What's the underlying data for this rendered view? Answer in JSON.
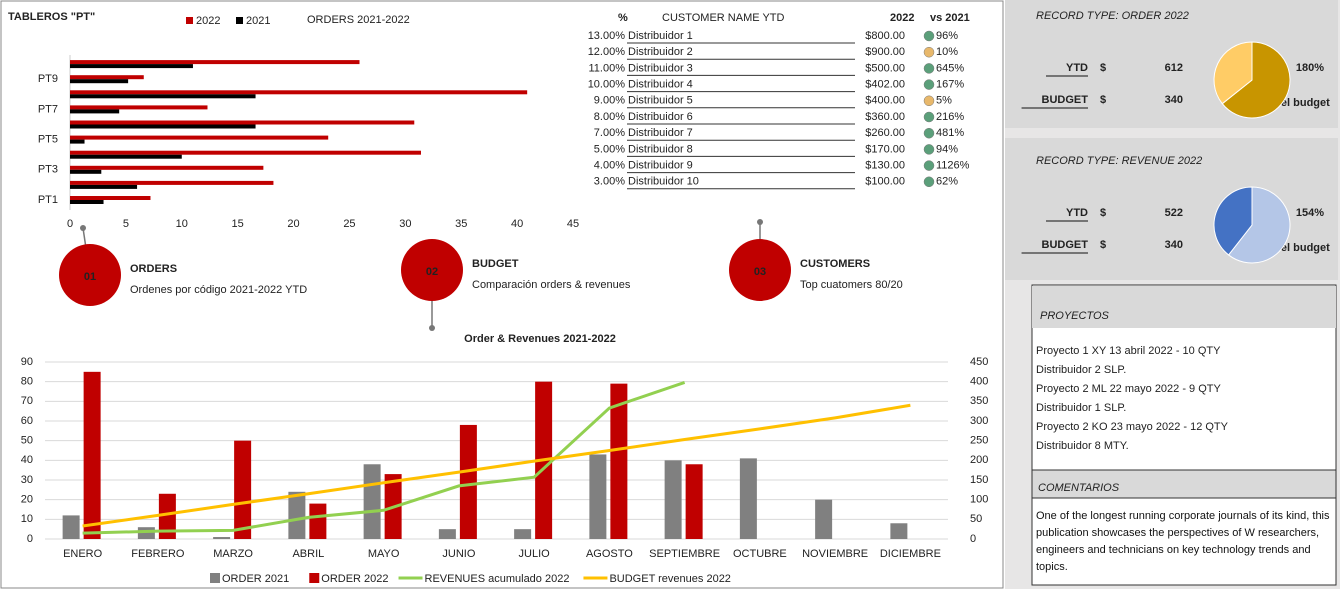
{
  "header": {
    "title": "TABLEROS \"PT\""
  },
  "chart_data": [
    {
      "type": "hbar",
      "title": "ORDERS 2021-2022",
      "categories": [
        "PT1",
        null,
        "PT3",
        null,
        "PT5",
        null,
        "PT7",
        null,
        "PT9",
        null
      ],
      "series": [
        {
          "name": "2022",
          "color": "#c00000",
          "values": [
            7.2,
            18.2,
            17.3,
            31.4,
            23.1,
            30.8,
            12.3,
            40.9,
            6.6,
            25.9
          ]
        },
        {
          "name": "2021",
          "color": "#000000",
          "values": [
            3,
            6,
            2.8,
            10,
            1.3,
            16.6,
            4.4,
            16.6,
            5.2,
            11
          ]
        }
      ],
      "xlim": [
        0,
        45
      ],
      "xticks": [
        0,
        5,
        10,
        15,
        20,
        25,
        30,
        35,
        40,
        45
      ]
    },
    {
      "type": "combo",
      "title": "Order & Revenues 2021-2022",
      "categories": [
        "ENERO",
        "FEBRERO",
        "MARZO",
        "ABRIL",
        "MAYO",
        "JUNIO",
        "JULIO",
        "AGOSTO",
        "SEPTIEMBRE",
        "OCTUBRE",
        "NOVIEMBRE",
        "DICIEMBRE"
      ],
      "series": [
        {
          "name": "ORDER 2021",
          "type": "bar",
          "color": "#808080",
          "values": [
            12,
            6,
            1,
            24,
            38,
            5,
            5,
            43,
            40,
            41,
            20,
            8
          ]
        },
        {
          "name": "ORDER 2022",
          "type": "bar",
          "color": "#c00000",
          "values": [
            85,
            23,
            50,
            18,
            33,
            58,
            80,
            79,
            38,
            null,
            null,
            null
          ]
        },
        {
          "name": "REVENUES acumulado 2022",
          "type": "line",
          "axis": "y2",
          "color": "#92d050",
          "values": [
            15,
            20,
            22,
            55,
            73,
            135,
            157,
            333,
            398,
            null,
            null,
            null
          ]
        },
        {
          "name": "BUDGET revenues 2022",
          "type": "line",
          "axis": "y2",
          "color": "#ffc000",
          "values": [
            33,
            60,
            88,
            115,
            143,
            170,
            198,
            225,
            253,
            280,
            308,
            340
          ]
        }
      ],
      "ylim": [
        0,
        90
      ],
      "yticks": [
        0,
        10,
        20,
        30,
        40,
        50,
        60,
        70,
        80,
        90
      ],
      "y2lim": [
        0,
        450
      ],
      "y2ticks": [
        0,
        50,
        100,
        150,
        200,
        250,
        300,
        350,
        400,
        450
      ],
      "grid": true
    },
    {
      "type": "pie",
      "title": "RECORD TYPE: ORDER 2022",
      "categories": [
        "YTD",
        "BUDGET"
      ],
      "currency": "$",
      "values": [
        612,
        340
      ],
      "colors": [
        "#c89500",
        "#ffcc66"
      ],
      "ratio_label": "180%",
      "ratio_note": "del budget"
    },
    {
      "type": "pie",
      "title": "RECORD TYPE: REVENUE 2022",
      "categories": [
        "YTD",
        "BUDGET"
      ],
      "currency": "$",
      "values": [
        522,
        340
      ],
      "colors": [
        "#b4c6e7",
        "#4472c4"
      ],
      "ratio_label": "154%",
      "ratio_note": "del budget"
    }
  ],
  "table": {
    "headers": [
      "%",
      "CUSTOMER NAME YTD",
      "2022",
      "vs 2021"
    ],
    "rows": [
      {
        "pct": "13.00%",
        "name": "Distribuidor 1",
        "amount": "$800.00",
        "vs": "96%",
        "color": "#5b9f7a"
      },
      {
        "pct": "12.00%",
        "name": "Distribuidor 2",
        "amount": "$900.00",
        "vs": "10%",
        "color": "#e8b86b"
      },
      {
        "pct": "11.00%",
        "name": "Distribuidor 3",
        "amount": "$500.00",
        "vs": "645%",
        "color": "#5b9f7a"
      },
      {
        "pct": "10.00%",
        "name": "Distribuidor 4",
        "amount": "$402.00",
        "vs": "167%",
        "color": "#5b9f7a"
      },
      {
        "pct": "9.00%",
        "name": "Distribuidor 5",
        "amount": "$400.00",
        "vs": "5%",
        "color": "#e8b86b"
      },
      {
        "pct": "8.00%",
        "name": "Distribuidor 6",
        "amount": "$360.00",
        "vs": "216%",
        "color": "#5b9f7a"
      },
      {
        "pct": "7.00%",
        "name": "Distribuidor 7",
        "amount": "$260.00",
        "vs": "481%",
        "color": "#5b9f7a"
      },
      {
        "pct": "5.00%",
        "name": "Distribuidor 8",
        "amount": "$170.00",
        "vs": "94%",
        "color": "#5b9f7a"
      },
      {
        "pct": "4.00%",
        "name": "Distribuidor 9",
        "amount": "$130.00",
        "vs": "1126%",
        "color": "#5b9f7a"
      },
      {
        "pct": "3.00%",
        "name": "Distribuidor 10",
        "amount": "$100.00",
        "vs": "62%",
        "color": "#5b9f7a"
      }
    ]
  },
  "callouts": [
    {
      "number": "01",
      "title": "ORDERS",
      "text": "Ordenes por código 2021-2022 YTD"
    },
    {
      "number": "02",
      "title": "BUDGET",
      "text": "Comparación orders & revenues"
    },
    {
      "number": "03",
      "title": "CUSTOMERS",
      "text": "Top cuatomers 80/20"
    }
  ],
  "proyectos": {
    "title": "PROYECTOS",
    "items": [
      {
        "text": "Proyecto 1 XY 13 abril   2022 - 10 QTY",
        "color": "#111111"
      },
      {
        "text": "Distribuidor 2 SLP.",
        "color": "#111111"
      },
      {
        "text": "Proyecto 2 ML 22 mayo 2022 -  9 QTY",
        "color": "#ed7d31"
      },
      {
        "text": "Distribuidor 1 SLP.",
        "color": "#ed7d31"
      },
      {
        "text": "Proyecto 2 KO 23 mayo 2022 - 12 QTY",
        "color": "#70ad47"
      },
      {
        "text": "Distribuidor 8 MTY.",
        "color": "#70ad47"
      }
    ]
  },
  "comentarios": {
    "title": "COMENTARIOS",
    "text": "One of the longest running corporate journals of its kind, this publication showcases the perspectives of W researchers, engineers and technicians on key technology trends and topics."
  }
}
